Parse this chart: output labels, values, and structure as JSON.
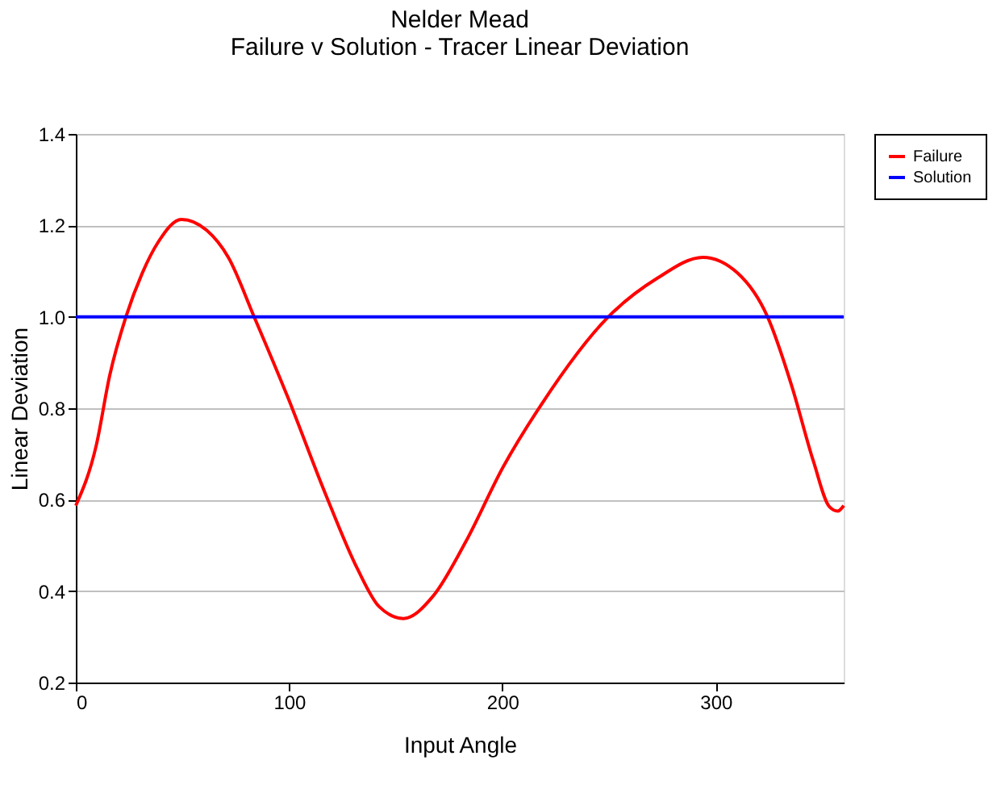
{
  "chart_data": {
    "type": "line",
    "title": [
      "Nelder Mead",
      "Failure v Solution - Tracer Linear Deviation"
    ],
    "xlabel": "Input Angle",
    "ylabel": "Linear Deviation",
    "xlim": [
      0,
      360
    ],
    "xticks": [
      0,
      100,
      200,
      300
    ],
    "ylim": [
      0.2,
      1.4
    ],
    "yticks": [
      0.2,
      0.4,
      0.6,
      0.8,
      {
        "value": 1,
        "label": "1.0"
      },
      1.2,
      1.4
    ],
    "grid": "y",
    "legend": "top right",
    "marker": "none",
    "line_style": "solid",
    "series": [
      {
        "name": "Failure",
        "color": "#ff0000",
        "x": [
          0,
          9.6,
          15.9,
          23.5,
          31.1,
          38.7,
          49.5,
          61.4,
          71.5,
          83.6,
          99.3,
          117,
          132.1,
          142.2,
          153.6,
          167.5,
          182.7,
          200.4,
          218.1,
          249.7,
          272.5,
          294,
          310.4,
          324.3,
          335.7,
          345.8,
          353.4,
          357.2,
          360
        ],
        "values": [
          0.587,
          0.719,
          0.872,
          1.0,
          1.095,
          1.164,
          1.213,
          1.189,
          1.13,
          1.0,
          0.825,
          0.613,
          0.448,
          0.366,
          0.34,
          0.389,
          0.507,
          0.672,
          0.807,
          1.0,
          1.084,
          1.13,
          1.095,
          1.0,
          0.848,
          0.684,
          0.584,
          0.575,
          0.587
        ]
      },
      {
        "name": "Solution",
        "color": "#0000ff",
        "x": [
          0,
          360
        ],
        "values": [
          1.0,
          1.0
        ]
      }
    ]
  }
}
